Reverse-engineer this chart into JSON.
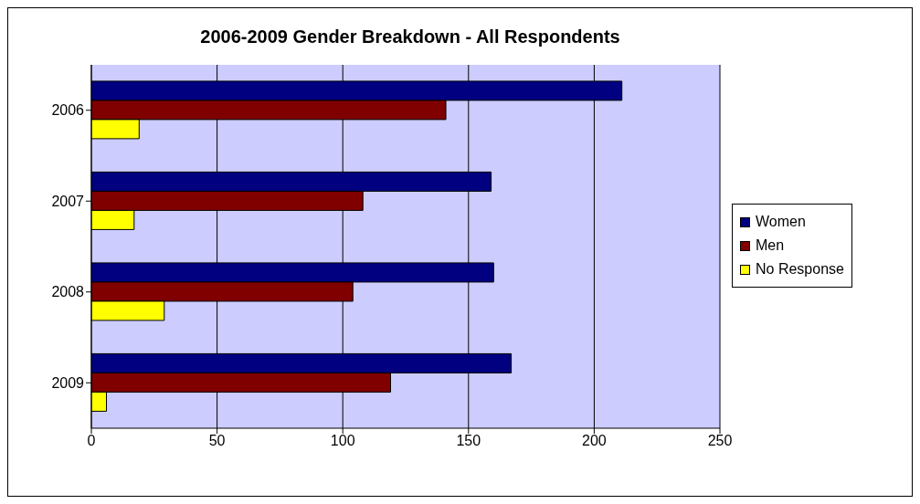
{
  "chart_data": {
    "type": "bar",
    "orientation": "horizontal",
    "title": "2006-2009 Gender Breakdown - All Respondents",
    "categories": [
      "2006",
      "2007",
      "2008",
      "2009"
    ],
    "series": [
      {
        "name": "Women",
        "color": "#000080",
        "values": [
          211,
          159,
          160,
          167
        ]
      },
      {
        "name": "Men",
        "color": "#800000",
        "values": [
          141,
          108,
          104,
          119
        ]
      },
      {
        "name": "No Response",
        "color": "#ffff00",
        "values": [
          19,
          17,
          29,
          6
        ]
      }
    ],
    "xlim": [
      0,
      250
    ],
    "xticks": [
      0,
      50,
      100,
      150,
      200,
      250
    ],
    "grid": "x",
    "legend": "right"
  }
}
